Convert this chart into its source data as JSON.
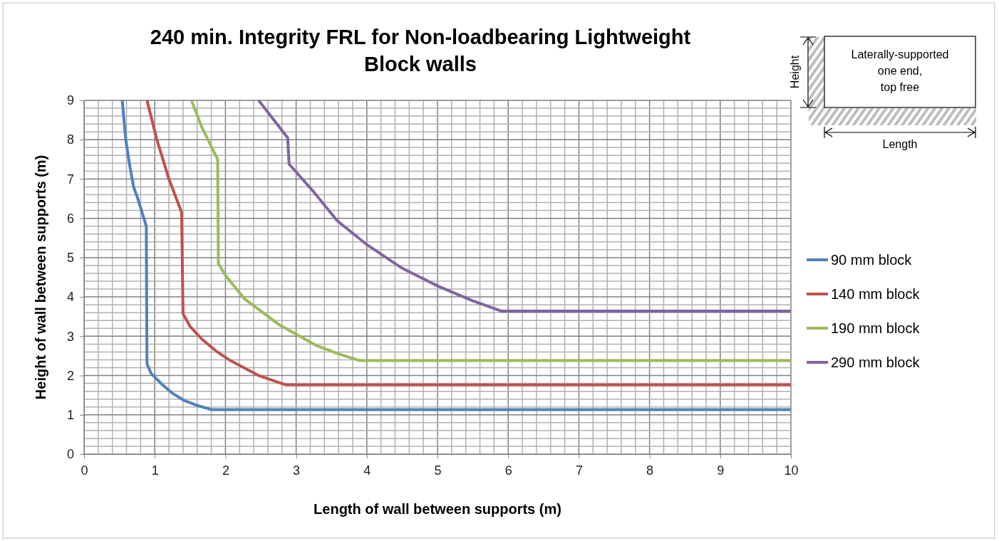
{
  "chart_data": {
    "type": "line",
    "title": "240 min. Integrity FRL for Non-loadbearing Lightweight Block walls",
    "xlabel": "Length of wall between supports (m)",
    "ylabel": "Height of wall between supports (m)",
    "xlim": [
      0,
      10
    ],
    "ylim": [
      0,
      9
    ],
    "xticks": [
      0,
      1,
      2,
      3,
      4,
      5,
      6,
      7,
      8,
      9,
      10
    ],
    "yticks": [
      0,
      1,
      2,
      3,
      4,
      5,
      6,
      7,
      8,
      9
    ],
    "grid": true,
    "legend": "right",
    "marker": "none",
    "line_style": "solid",
    "annotations": [
      "Laterally-supported one end, top free",
      "Height",
      "Length"
    ],
    "series": [
      {
        "name": "90 mm block",
        "color": "#4f81bd",
        "x": [
          0.54,
          0.59,
          0.64,
          0.7,
          0.76,
          0.88,
          0.89,
          0.95,
          1.1,
          1.25,
          1.4,
          1.6,
          1.81,
          10
        ],
        "values": [
          9,
          8,
          7.4,
          6.8,
          6.5,
          5.8,
          2.3,
          2.05,
          1.78,
          1.55,
          1.38,
          1.24,
          1.13,
          1.13
        ]
      },
      {
        "name": "140 mm block",
        "color": "#c0504d",
        "x": [
          0.89,
          1.03,
          1.2,
          1.38,
          1.4,
          1.5,
          1.67,
          1.87,
          2.07,
          2.47,
          2.86,
          10
        ],
        "values": [
          9,
          8,
          7,
          6.15,
          3.57,
          3.25,
          2.92,
          2.62,
          2.38,
          2.0,
          1.76,
          1.76
        ]
      },
      {
        "name": "190 mm block",
        "color": "#9bbb59",
        "x": [
          1.52,
          1.67,
          1.89,
          1.9,
          2.0,
          2.27,
          2.77,
          3.28,
          3.6,
          3.9,
          10
        ],
        "values": [
          9,
          8.3,
          7.5,
          4.85,
          4.55,
          3.95,
          3.28,
          2.77,
          2.55,
          2.38,
          2.38
        ]
      },
      {
        "name": "290 mm block",
        "color": "#8064a2",
        "x": [
          2.47,
          2.88,
          2.9,
          3.25,
          3.58,
          4,
          4.5,
          5,
          5.5,
          5.9,
          10
        ],
        "values": [
          9,
          8.05,
          7.38,
          6.67,
          5.94,
          5.33,
          4.73,
          4.28,
          3.9,
          3.64,
          3.64
        ]
      }
    ]
  }
}
